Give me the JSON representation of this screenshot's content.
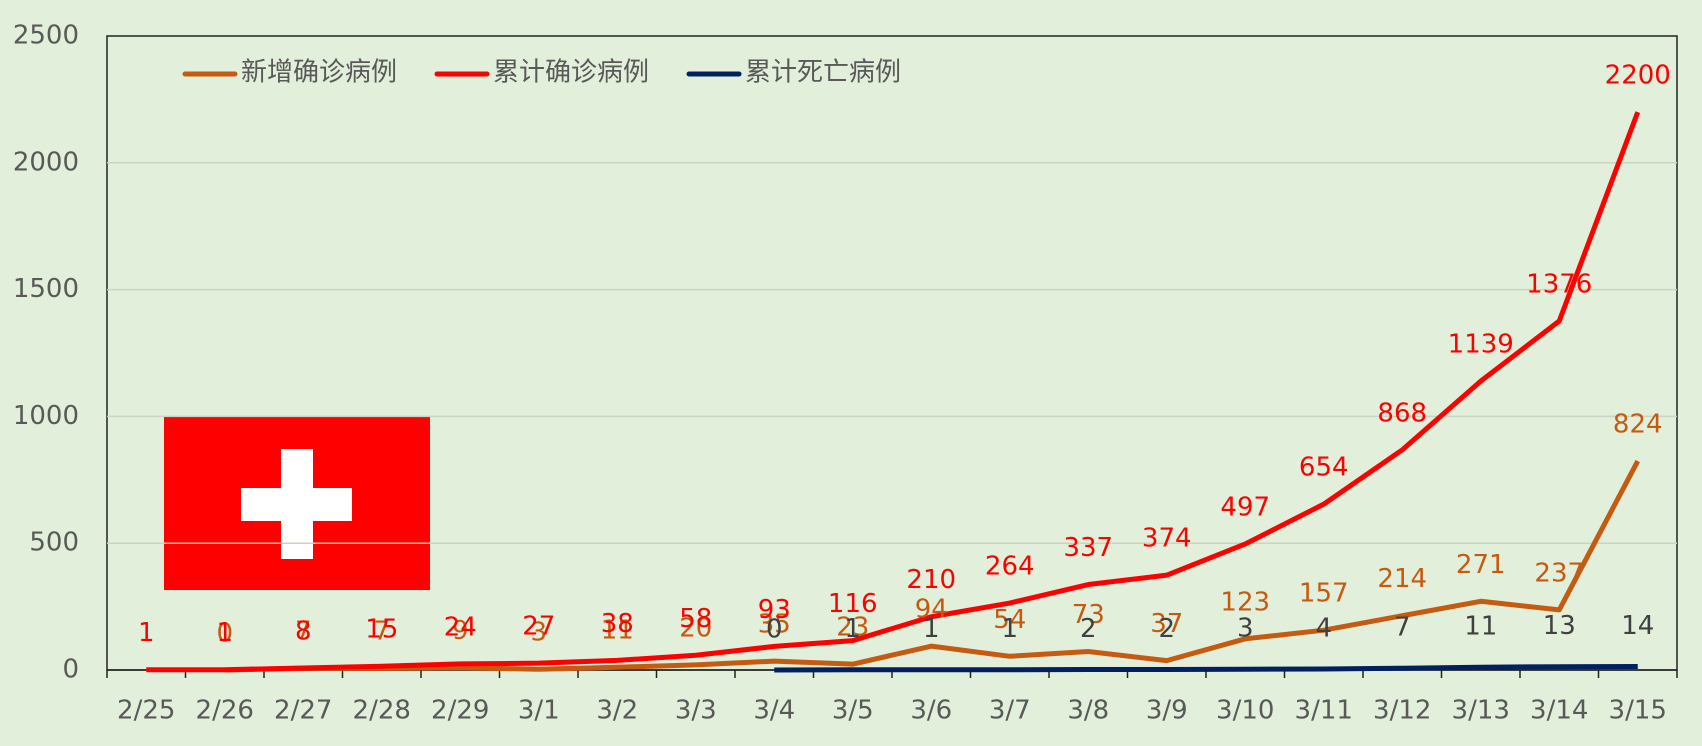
{
  "chart_data": {
    "type": "line",
    "categories": [
      "2/25",
      "2/26",
      "2/27",
      "2/28",
      "2/29",
      "3/1",
      "3/2",
      "3/3",
      "3/4",
      "3/5",
      "3/6",
      "3/7",
      "3/8",
      "3/9",
      "3/10",
      "3/11",
      "3/12",
      "3/13",
      "3/14",
      "3/15"
    ],
    "series": [
      {
        "name": "新增确诊病例",
        "color": "#c55a11",
        "values": [
          null,
          0,
          7,
          7,
          9,
          3,
          11,
          20,
          35,
          23,
          94,
          54,
          73,
          37,
          123,
          157,
          214,
          271,
          237,
          824
        ]
      },
      {
        "name": "累计确诊病例",
        "color": "#ff0000",
        "values": [
          1,
          1,
          8,
          15,
          24,
          27,
          38,
          58,
          93,
          116,
          210,
          264,
          337,
          374,
          497,
          654,
          868,
          1139,
          1376,
          2200
        ]
      },
      {
        "name": "累计死亡病例",
        "color": "#002060",
        "values": [
          null,
          null,
          null,
          null,
          null,
          null,
          null,
          null,
          0,
          1,
          1,
          1,
          2,
          2,
          3,
          4,
          7,
          11,
          13,
          14
        ]
      }
    ],
    "ylim": [
      0,
      2500
    ],
    "yticks": [
      0,
      500,
      1000,
      1500,
      2000,
      2500
    ],
    "grid": true,
    "legend": "top-left"
  }
}
